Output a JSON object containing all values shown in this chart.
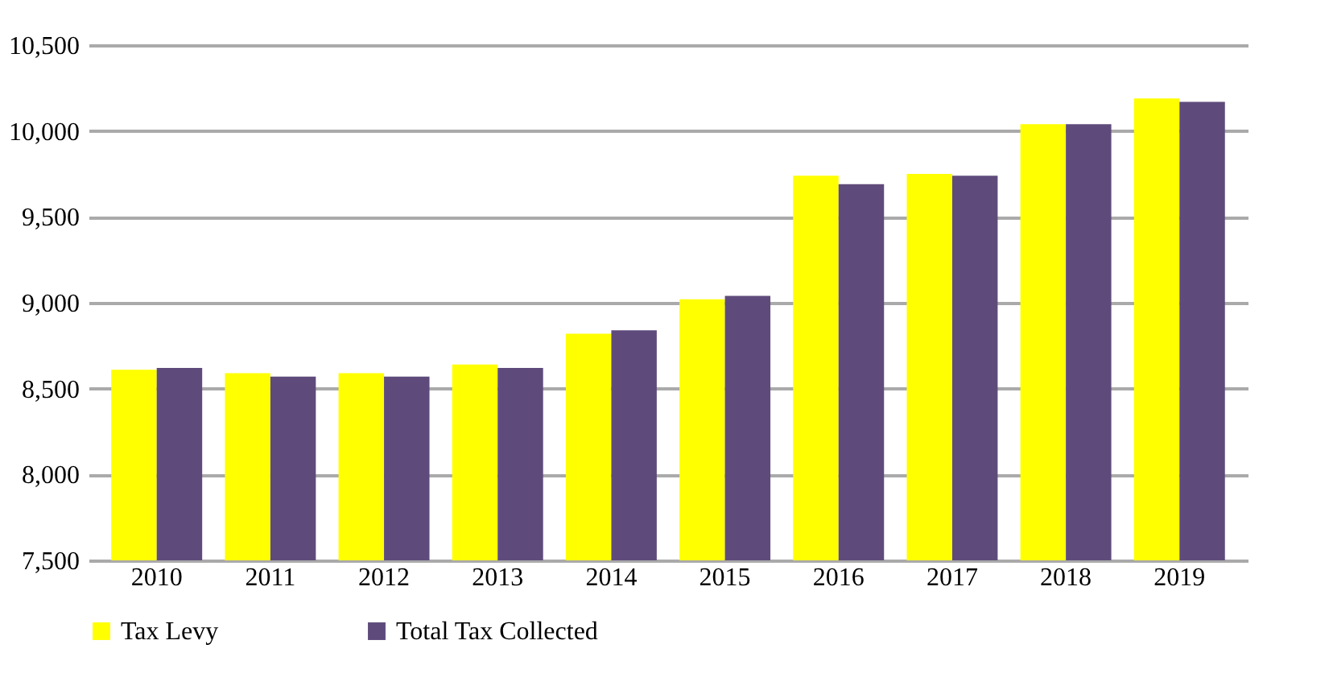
{
  "chart_data": {
    "type": "bar",
    "categories": [
      "2010",
      "2011",
      "2012",
      "2013",
      "2014",
      "2015",
      "2016",
      "2017",
      "2018",
      "2019"
    ],
    "series": [
      {
        "name": "Tax Levy",
        "color": "#ffff00",
        "values": [
          8610,
          8590,
          8590,
          8640,
          8820,
          9020,
          9740,
          9750,
          10040,
          10190
        ]
      },
      {
        "name": "Total Tax Collected",
        "color": "#5f4b7b",
        "values": [
          8620,
          8570,
          8570,
          8620,
          8840,
          9040,
          9690,
          9740,
          10040,
          10170
        ]
      }
    ],
    "ylim": [
      7500,
      10500
    ],
    "yticks": [
      {
        "value": 7500,
        "label": "7,500"
      },
      {
        "value": 8000,
        "label": "8,000"
      },
      {
        "value": 8500,
        "label": "8,500"
      },
      {
        "value": 9000,
        "label": "9,000"
      },
      {
        "value": 9500,
        "label": "9,500"
      },
      {
        "value": 10000,
        "label": "10,000"
      },
      {
        "value": 10500,
        "label": "10,500"
      }
    ],
    "grid": "y",
    "legend": "bottom"
  }
}
